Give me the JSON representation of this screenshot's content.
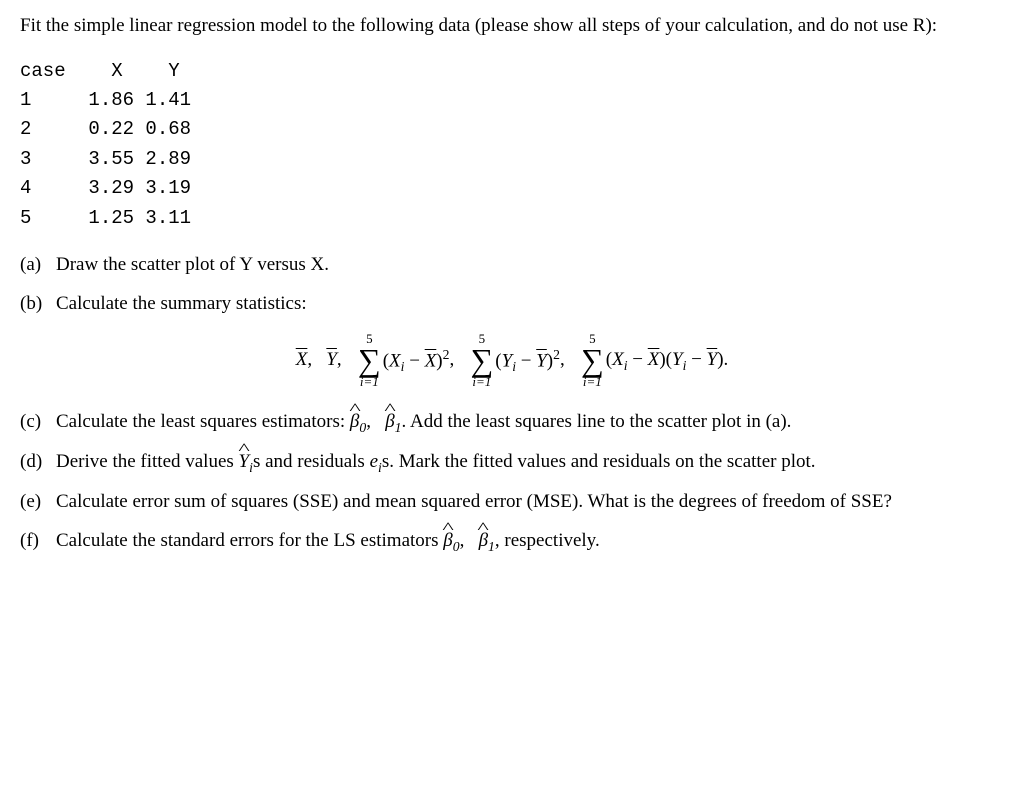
{
  "intro": "Fit the simple linear regression model to the following data (please show all steps of your calculation, and do not use R):",
  "table": {
    "header": "case    X    Y",
    "rows": [
      "1     1.86 1.41",
      "2     0.22 0.68",
      "3     3.55 2.89",
      "4     3.29 3.19",
      "5     1.25 3.11"
    ]
  },
  "parts": {
    "a": {
      "label": "(a)",
      "text": "Draw the scatter plot of Y versus X."
    },
    "b": {
      "label": "(b)",
      "text": "Calculate the summary statistics:"
    },
    "c": {
      "label": "(c)",
      "text_before": "Calculate the least squares estimators: ",
      "text_after": ".  Add the least squares line to the scatter plot in (a)."
    },
    "d": {
      "label": "(d)",
      "text_before": "Derive the fitted values ",
      "mid1": "s and residuals ",
      "mid2": "s.  Mark the fitted values and residuals on the scatter plot."
    },
    "e": {
      "label": "(e)",
      "text": "Calculate error sum of squares (SSE) and mean squared error (MSE). What is the degrees of freedom of SSE?"
    },
    "f": {
      "label": "(f)",
      "text_before": "Calculate the standard errors for the LS estimators ",
      "text_after": ", respectively."
    }
  },
  "math": {
    "Xbar": "X",
    "Ybar": "Y",
    "sum_upper": "5",
    "sum_lower": "i=1",
    "beta0": "β",
    "beta0_sub": "0",
    "beta1": "β",
    "beta1_sub": "1",
    "Yhat": "Y",
    "Yhat_sub": "i",
    "e": "e",
    "e_sub": "i",
    "Xi": "X",
    "Yi": "Y",
    "i": "i"
  }
}
